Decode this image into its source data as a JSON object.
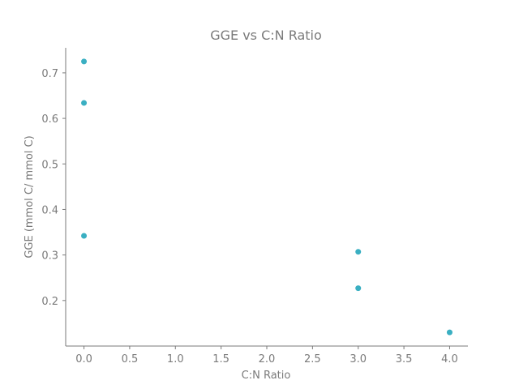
{
  "chart_data": {
    "type": "scatter",
    "title": "GGE vs C:N Ratio",
    "xlabel": "C:N Ratio",
    "ylabel": "GGE (mmol C/ mmol C)",
    "xlim": [
      -0.2,
      4.2
    ],
    "ylim": [
      0.1,
      0.755
    ],
    "xticks": [
      0.0,
      0.5,
      1.0,
      1.5,
      2.0,
      2.5,
      3.0,
      3.5,
      4.0
    ],
    "xtick_labels": [
      "0.0",
      "0.5",
      "1.0",
      "1.5",
      "2.0",
      "2.5",
      "3.0",
      "3.5",
      "4.0"
    ],
    "yticks": [
      0.2,
      0.3,
      0.4,
      0.5,
      0.6,
      0.7
    ],
    "ytick_labels": [
      "0.2",
      "0.3",
      "0.4",
      "0.5",
      "0.6",
      "0.7"
    ],
    "grid": false,
    "marker_color": "#3aafc2",
    "series": [
      {
        "points": [
          {
            "x": 0.0,
            "y": 0.725
          },
          {
            "x": 0.0,
            "y": 0.634
          },
          {
            "x": 0.0,
            "y": 0.342
          },
          {
            "x": 3.0,
            "y": 0.307
          },
          {
            "x": 3.0,
            "y": 0.227
          },
          {
            "x": 4.0,
            "y": 0.13
          }
        ]
      }
    ]
  }
}
